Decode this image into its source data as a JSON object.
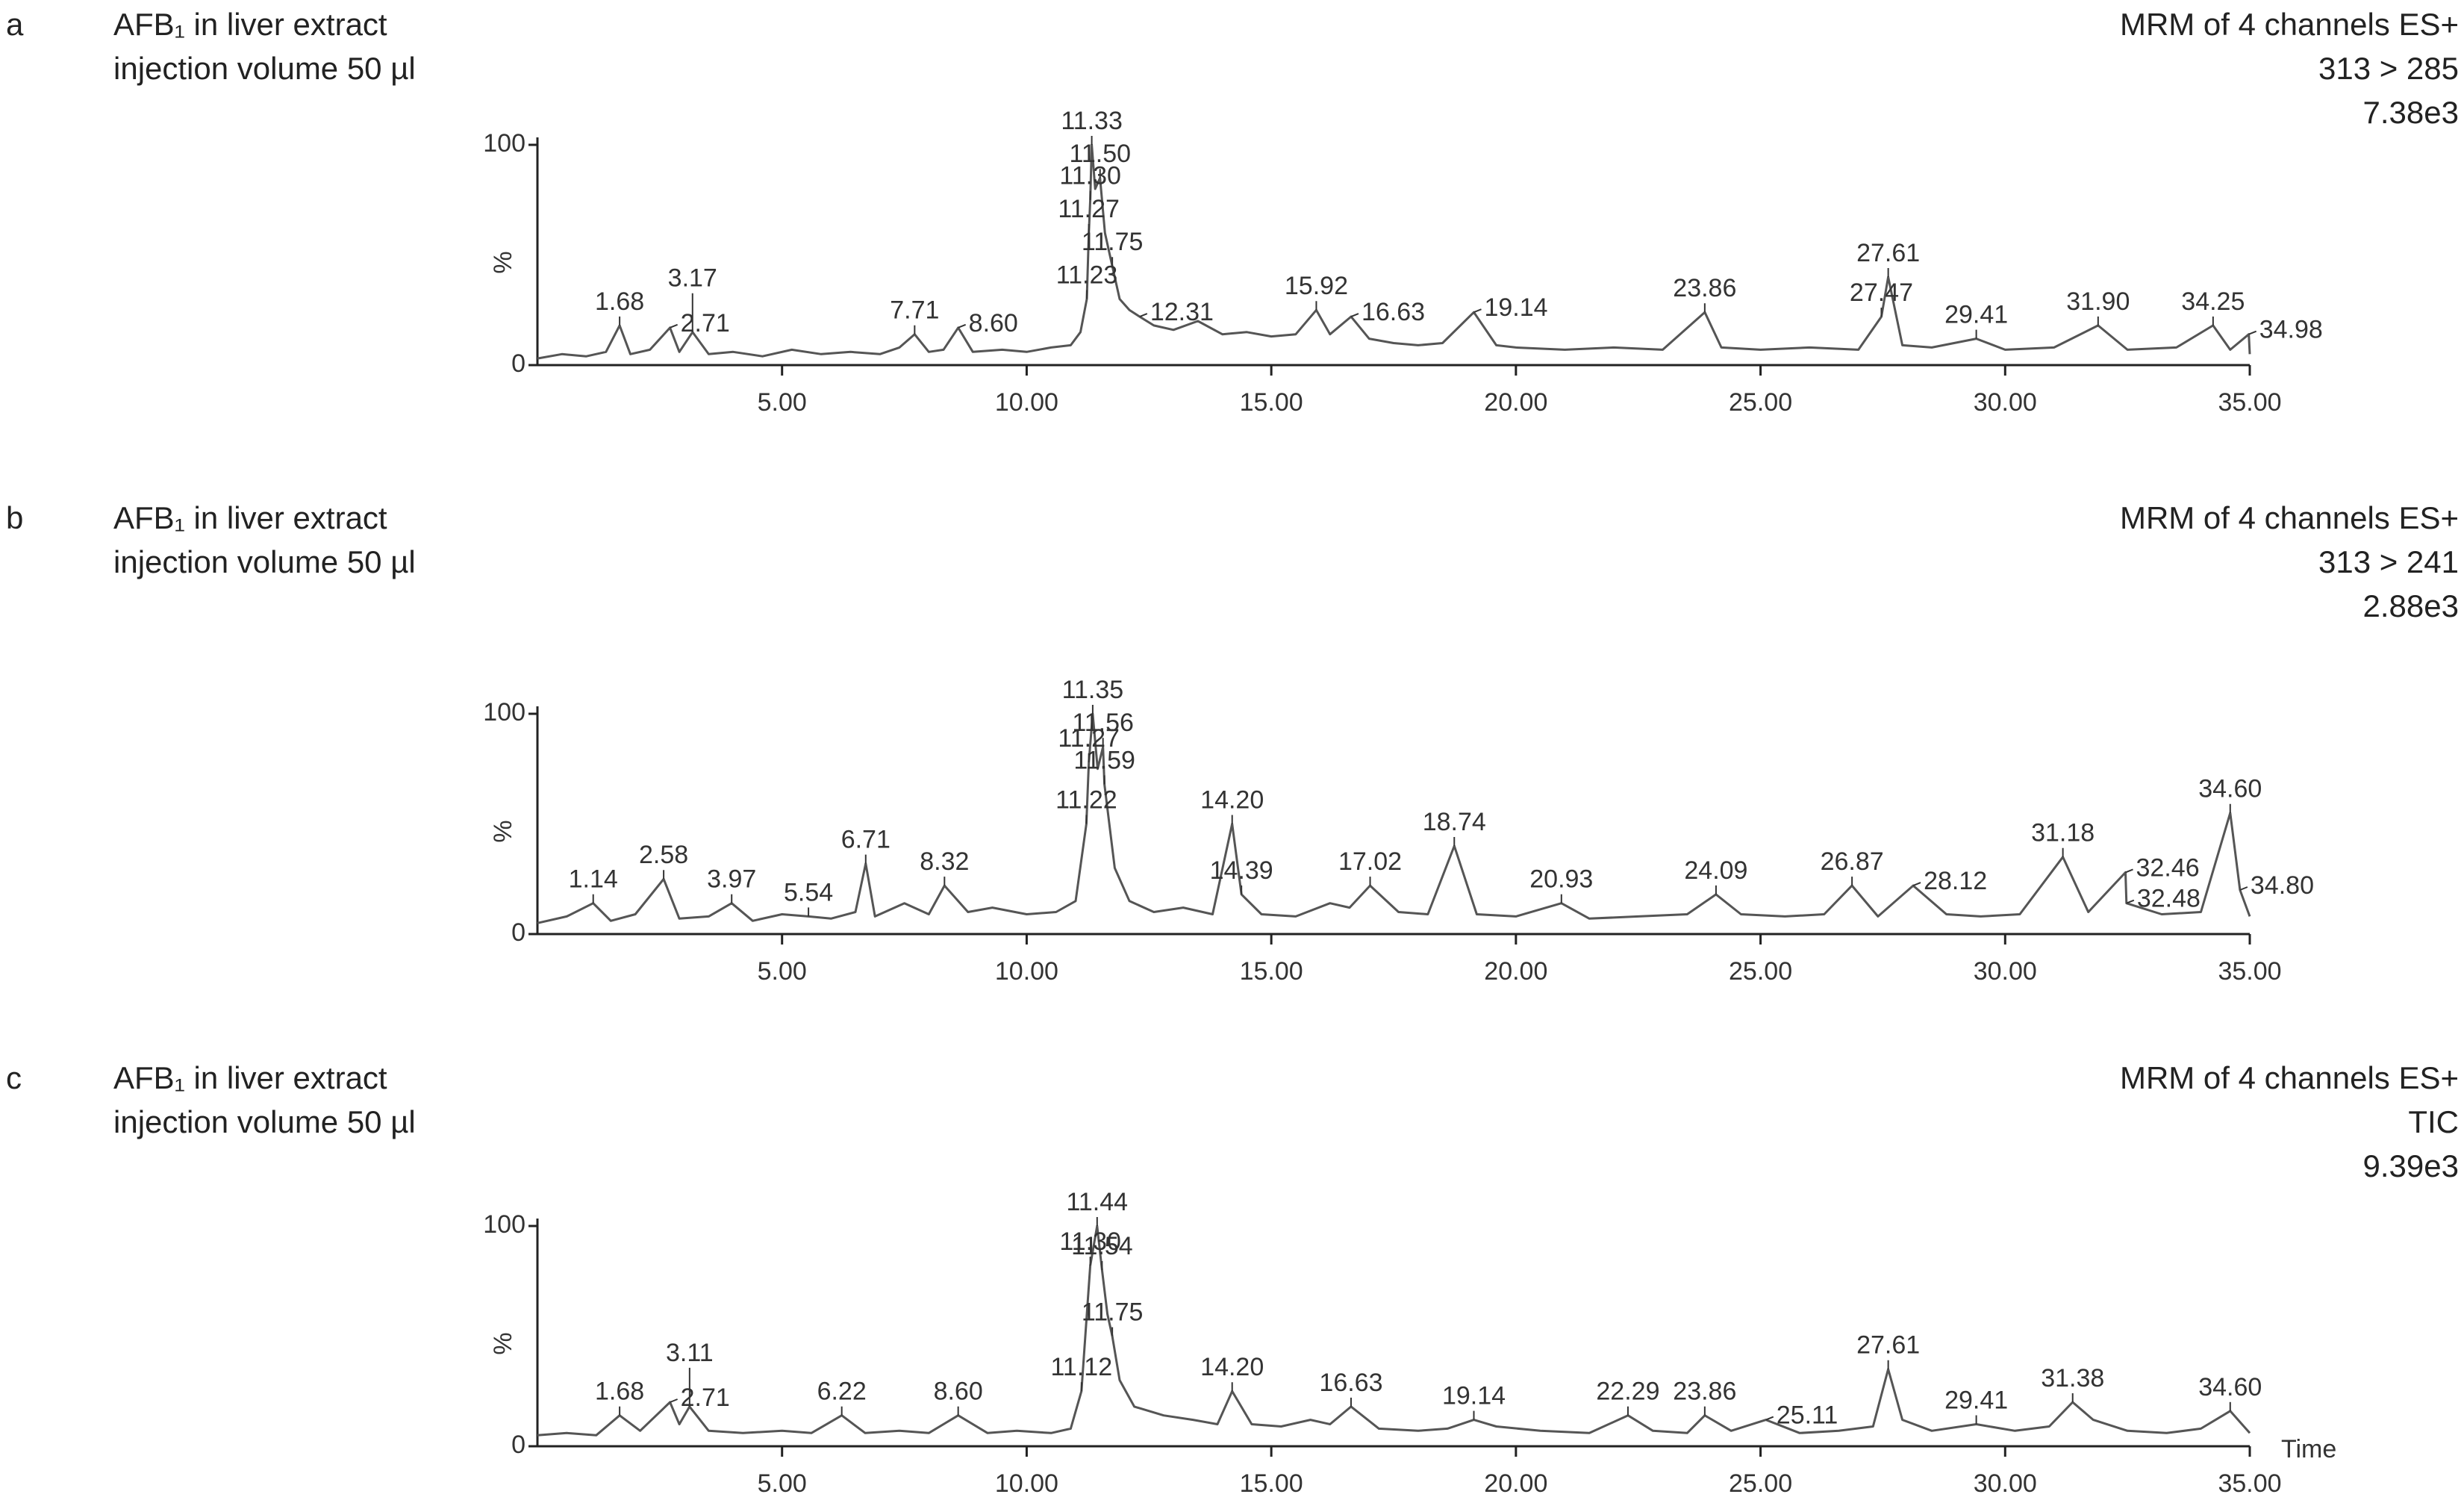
{
  "chart_data": [
    {
      "type": "line",
      "panel": "a",
      "title": "AFB₁ in liver extract",
      "subtitle": "injection volume 50 µl",
      "method": "MRM of 4 channels ES+",
      "channel": "313 > 285",
      "max_intensity": {
        "value": 7380,
        "label": "7.38e3"
      },
      "ylabel": "%",
      "color": "#555555",
      "xlim": [
        0,
        35
      ],
      "ylim": [
        0,
        100
      ],
      "xticks": [
        {
          "value": 5,
          "label": "5.00"
        },
        {
          "value": 10,
          "label": "10.00"
        },
        {
          "value": 15,
          "label": "15.00"
        },
        {
          "value": 20,
          "label": "20.00"
        },
        {
          "value": 25,
          "label": "25.00"
        },
        {
          "value": 30,
          "label": "30.00"
        },
        {
          "value": 35,
          "label": "35.00"
        }
      ],
      "yticks": [
        0,
        100
      ],
      "x": [
        0,
        0.5,
        1.0,
        1.4,
        1.68,
        1.9,
        2.3,
        2.71,
        2.9,
        3.17,
        3.5,
        4.0,
        4.6,
        5.2,
        5.8,
        6.4,
        7.0,
        7.4,
        7.71,
        8.0,
        8.3,
        8.6,
        8.9,
        9.5,
        10.0,
        10.5,
        10.9,
        11.1,
        11.23,
        11.27,
        11.3,
        11.33,
        11.4,
        11.5,
        11.6,
        11.75,
        11.9,
        12.1,
        12.31,
        12.6,
        13.0,
        13.5,
        14.0,
        14.5,
        15.0,
        15.5,
        15.92,
        16.2,
        16.63,
        17.0,
        17.5,
        18.0,
        18.5,
        19.14,
        19.6,
        20.0,
        21,
        22,
        23,
        23.86,
        24.2,
        25,
        26,
        27,
        27.47,
        27.61,
        27.9,
        28.5,
        29.41,
        30,
        31,
        31.9,
        32.5,
        33.5,
        34.25,
        34.6,
        34.98,
        35
      ],
      "values": [
        3,
        5,
        4,
        6,
        18,
        5,
        7,
        17,
        6,
        15,
        5,
        6,
        4,
        7,
        5,
        6,
        5,
        8,
        14,
        6,
        7,
        17,
        6,
        7,
        6,
        8,
        9,
        15,
        30,
        60,
        75,
        100,
        80,
        85,
        60,
        45,
        30,
        25,
        22,
        18,
        16,
        20,
        14,
        15,
        13,
        14,
        25,
        14,
        22,
        12,
        10,
        9,
        10,
        24,
        9,
        8,
        7,
        8,
        7,
        24,
        8,
        7,
        8,
        7,
        22,
        40,
        9,
        8,
        12,
        7,
        8,
        18,
        7,
        8,
        18,
        7,
        14,
        5
      ],
      "annotations": [
        {
          "label": "1.68",
          "x": 1.68,
          "y": 18
        },
        {
          "label": "2.71",
          "x": 2.71,
          "y": 17
        },
        {
          "label": "3.17",
          "x": 3.17,
          "y": 15
        },
        {
          "label": "7.71",
          "x": 7.71,
          "y": 14
        },
        {
          "label": "8.60",
          "x": 8.6,
          "y": 17
        },
        {
          "label": "11.23",
          "x": 11.23,
          "y": 30
        },
        {
          "label": "11.27",
          "x": 11.27,
          "y": 60
        },
        {
          "label": "11.30",
          "x": 11.3,
          "y": 75
        },
        {
          "label": "11.33",
          "x": 11.33,
          "y": 100
        },
        {
          "label": "11.50",
          "x": 11.5,
          "y": 85
        },
        {
          "label": "11.75",
          "x": 11.75,
          "y": 45
        },
        {
          "label": "12.31",
          "x": 12.31,
          "y": 22
        },
        {
          "label": "15.92",
          "x": 15.92,
          "y": 25
        },
        {
          "label": "16.63",
          "x": 16.63,
          "y": 22
        },
        {
          "label": "19.14",
          "x": 19.14,
          "y": 24
        },
        {
          "label": "23.86",
          "x": 23.86,
          "y": 24
        },
        {
          "label": "27.47",
          "x": 27.47,
          "y": 22
        },
        {
          "label": "27.61",
          "x": 27.61,
          "y": 40
        },
        {
          "label": "29.41",
          "x": 29.41,
          "y": 12
        },
        {
          "label": "31.90",
          "x": 31.9,
          "y": 18
        },
        {
          "label": "34.25",
          "x": 34.25,
          "y": 18
        },
        {
          "label": "34.98",
          "x": 34.98,
          "y": 14
        }
      ]
    },
    {
      "type": "line",
      "panel": "b",
      "title": "AFB₁ in liver extract",
      "subtitle": "injection volume 50 µl",
      "method": "MRM of 4 channels ES+",
      "channel": "313 > 241",
      "max_intensity": {
        "value": 2880,
        "label": "2.88e3"
      },
      "ylabel": "%",
      "color": "#555555",
      "xlim": [
        0,
        35
      ],
      "ylim": [
        0,
        100
      ],
      "xticks": [
        {
          "value": 5,
          "label": "5.00"
        },
        {
          "value": 10,
          "label": "10.00"
        },
        {
          "value": 15,
          "label": "15.00"
        },
        {
          "value": 20,
          "label": "20.00"
        },
        {
          "value": 25,
          "label": "25.00"
        },
        {
          "value": 30,
          "label": "30.00"
        },
        {
          "value": 35,
          "label": "35.00"
        }
      ],
      "yticks": [
        0,
        100
      ],
      "x": [
        0,
        0.6,
        1.14,
        1.5,
        2.0,
        2.58,
        2.9,
        3.5,
        3.97,
        4.4,
        5.0,
        5.54,
        6.0,
        6.5,
        6.71,
        6.9,
        7.5,
        8.0,
        8.32,
        8.8,
        9.3,
        10.0,
        10.6,
        11.0,
        11.22,
        11.27,
        11.35,
        11.45,
        11.56,
        11.59,
        11.8,
        12.1,
        12.6,
        13.2,
        13.8,
        14.2,
        14.39,
        14.8,
        15.5,
        16.2,
        16.6,
        17.02,
        17.6,
        18.2,
        18.74,
        19.2,
        20.0,
        20.93,
        21.5,
        22.5,
        23.5,
        24.09,
        24.6,
        25.5,
        26.3,
        26.87,
        27.4,
        28.12,
        28.8,
        29.5,
        30.3,
        31.18,
        31.7,
        32.46,
        32.48,
        33.2,
        34.0,
        34.6,
        34.8,
        35
      ],
      "values": [
        5,
        8,
        14,
        6,
        9,
        25,
        7,
        8,
        14,
        6,
        9,
        8,
        7,
        10,
        32,
        8,
        14,
        9,
        22,
        10,
        12,
        9,
        10,
        15,
        50,
        78,
        100,
        75,
        85,
        68,
        30,
        15,
        10,
        12,
        9,
        50,
        18,
        9,
        8,
        14,
        12,
        22,
        10,
        9,
        40,
        9,
        8,
        14,
        7,
        8,
        9,
        18,
        9,
        8,
        9,
        22,
        8,
        22,
        9,
        8,
        9,
        35,
        10,
        28,
        14,
        9,
        10,
        55,
        20,
        8
      ],
      "annotations": [
        {
          "label": "1.14",
          "x": 1.14,
          "y": 14
        },
        {
          "label": "2.58",
          "x": 2.58,
          "y": 25
        },
        {
          "label": "3.97",
          "x": 3.97,
          "y": 14
        },
        {
          "label": "5.54",
          "x": 5.54,
          "y": 8
        },
        {
          "label": "6.71",
          "x": 6.71,
          "y": 32
        },
        {
          "label": "8.32",
          "x": 8.32,
          "y": 22
        },
        {
          "label": "11.22",
          "x": 11.22,
          "y": 50
        },
        {
          "label": "11.27",
          "x": 11.27,
          "y": 78
        },
        {
          "label": "11.35",
          "x": 11.35,
          "y": 100
        },
        {
          "label": "11.56",
          "x": 11.56,
          "y": 85
        },
        {
          "label": "11.59",
          "x": 11.59,
          "y": 68
        },
        {
          "label": "14.20",
          "x": 14.2,
          "y": 50
        },
        {
          "label": "14.39",
          "x": 14.39,
          "y": 18
        },
        {
          "label": "17.02",
          "x": 17.02,
          "y": 22
        },
        {
          "label": "18.74",
          "x": 18.74,
          "y": 40
        },
        {
          "label": "20.93",
          "x": 20.93,
          "y": 14
        },
        {
          "label": "24.09",
          "x": 24.09,
          "y": 18
        },
        {
          "label": "26.87",
          "x": 26.87,
          "y": 22
        },
        {
          "label": "28.12",
          "x": 28.12,
          "y": 22
        },
        {
          "label": "31.18",
          "x": 31.18,
          "y": 35
        },
        {
          "label": "32.46",
          "x": 32.46,
          "y": 28
        },
        {
          "label": "32.48",
          "x": 32.48,
          "y": 14
        },
        {
          "label": "34.60",
          "x": 34.6,
          "y": 55
        },
        {
          "label": "34.80",
          "x": 34.8,
          "y": 20
        }
      ]
    },
    {
      "type": "line",
      "panel": "c",
      "title": "AFB₁ in liver extract",
      "subtitle": "injection volume 50 µl",
      "method": "MRM of 4 channels ES+",
      "channel": "TIC",
      "max_intensity": {
        "value": 9390,
        "label": "9.39e3"
      },
      "ylabel": "%",
      "xlabel": "Time",
      "color": "#555555",
      "xlim": [
        0,
        35
      ],
      "ylim": [
        0,
        100
      ],
      "xticks": [
        {
          "value": 5,
          "label": "5.00"
        },
        {
          "value": 10,
          "label": "10.00"
        },
        {
          "value": 15,
          "label": "15.00"
        },
        {
          "value": 20,
          "label": "20.00"
        },
        {
          "value": 25,
          "label": "25.00"
        },
        {
          "value": 30,
          "label": "30.00"
        },
        {
          "value": 35,
          "label": "35.00"
        }
      ],
      "yticks": [
        0,
        100
      ],
      "x": [
        0,
        0.6,
        1.2,
        1.68,
        2.1,
        2.71,
        2.9,
        3.11,
        3.5,
        4.2,
        5.0,
        5.6,
        6.22,
        6.7,
        7.4,
        8.0,
        8.6,
        9.2,
        9.8,
        10.5,
        10.9,
        11.12,
        11.3,
        11.44,
        11.54,
        11.65,
        11.75,
        11.9,
        12.2,
        12.8,
        13.4,
        13.9,
        14.2,
        14.6,
        15.2,
        15.8,
        16.2,
        16.63,
        17.2,
        18.0,
        18.6,
        19.14,
        19.6,
        20.5,
        21.5,
        22.29,
        22.8,
        23.5,
        23.86,
        24.4,
        25.11,
        25.8,
        26.6,
        27.3,
        27.61,
        27.9,
        28.5,
        29.41,
        30.2,
        30.9,
        31.38,
        31.8,
        32.5,
        33.3,
        34.0,
        34.6,
        35
      ],
      "values": [
        5,
        6,
        5,
        14,
        7,
        20,
        10,
        18,
        7,
        6,
        7,
        6,
        14,
        6,
        7,
        6,
        14,
        6,
        7,
        6,
        8,
        25,
        82,
        100,
        80,
        60,
        50,
        30,
        18,
        14,
        12,
        10,
        25,
        10,
        9,
        12,
        10,
        18,
        8,
        7,
        8,
        12,
        9,
        7,
        6,
        14,
        7,
        6,
        14,
        7,
        12,
        6,
        7,
        9,
        35,
        12,
        7,
        10,
        7,
        9,
        20,
        12,
        7,
        6,
        8,
        16,
        6
      ],
      "annotations": [
        {
          "label": "1.68",
          "x": 1.68,
          "y": 14
        },
        {
          "label": "2.71",
          "x": 2.71,
          "y": 20
        },
        {
          "label": "3.11",
          "x": 3.11,
          "y": 18
        },
        {
          "label": "6.22",
          "x": 6.22,
          "y": 14
        },
        {
          "label": "8.60",
          "x": 8.6,
          "y": 14
        },
        {
          "label": "11.12",
          "x": 11.12,
          "y": 25
        },
        {
          "label": "11.30",
          "x": 11.3,
          "y": 82
        },
        {
          "label": "11.44",
          "x": 11.44,
          "y": 100
        },
        {
          "label": "11.54",
          "x": 11.54,
          "y": 80
        },
        {
          "label": "11.75",
          "x": 11.75,
          "y": 50
        },
        {
          "label": "14.20",
          "x": 14.2,
          "y": 25
        },
        {
          "label": "16.63",
          "x": 16.63,
          "y": 18
        },
        {
          "label": "19.14",
          "x": 19.14,
          "y": 12
        },
        {
          "label": "22.29",
          "x": 22.29,
          "y": 14
        },
        {
          "label": "23.86",
          "x": 23.86,
          "y": 14
        },
        {
          "label": "25.11",
          "x": 25.11,
          "y": 12
        },
        {
          "label": "27.61",
          "x": 27.61,
          "y": 35
        },
        {
          "label": "29.41",
          "x": 29.41,
          "y": 10
        },
        {
          "label": "31.38",
          "x": 31.38,
          "y": 20
        },
        {
          "label": "34.60",
          "x": 34.6,
          "y": 16
        }
      ]
    }
  ]
}
